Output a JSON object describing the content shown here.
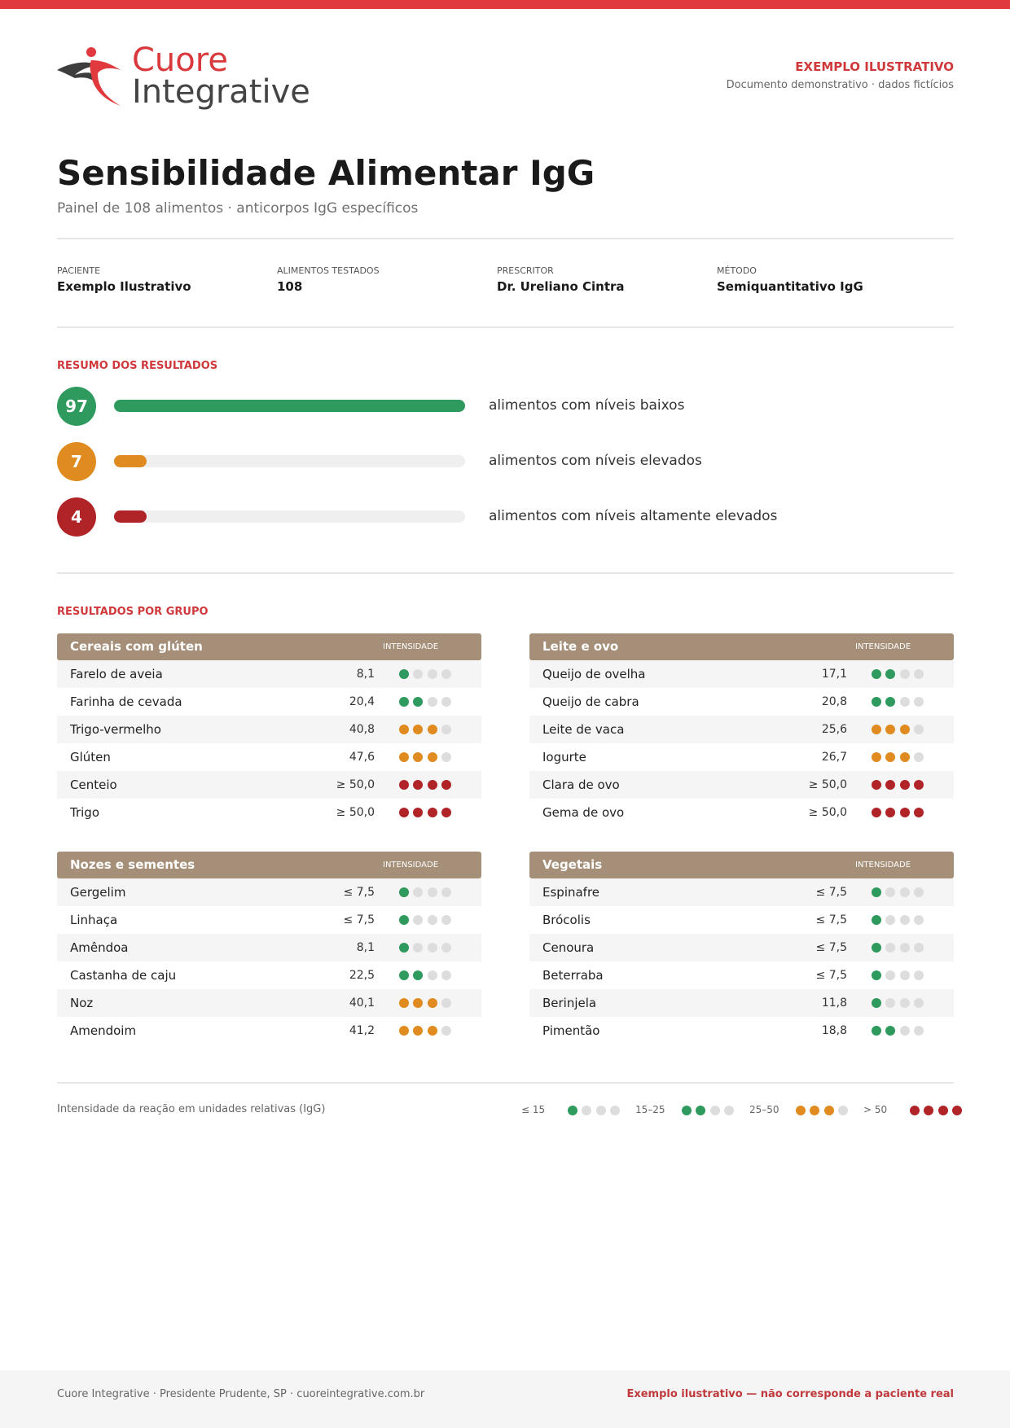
{
  "header": {
    "logo_top": "Cuore",
    "logo_bottom": "Integrative",
    "badge": "EXEMPLO ILUSTRATIVO",
    "badge_note": "Documento demonstrativo · dados fictícios"
  },
  "title": "Sensibilidade Alimentar IgG",
  "subtitle": "Painel de 108 alimentos · anticorpos IgG específicos",
  "info": [
    {
      "label": "PACIENTE",
      "value": "Exemplo Ilustrativo"
    },
    {
      "label": "ALIMENTOS TESTADOS",
      "value": "108"
    },
    {
      "label": "PRESCRITOR",
      "value": "Dr. Ureliano Cintra"
    },
    {
      "label": "MÉTODO",
      "value": "Semiquantitativo IgG"
    }
  ],
  "summary": {
    "title": "RESUMO DOS RESULTADOS",
    "items": [
      {
        "count": 97,
        "label": "alimentos com níveis baixos",
        "color": "#2e9a5e"
      },
      {
        "count": 7,
        "label": "alimentos com níveis elevados",
        "color": "#e08b1f"
      },
      {
        "count": 4,
        "label": "alimentos com níveis altamente elevados",
        "color": "#b02428"
      }
    ]
  },
  "groups_title": "RESULTADOS POR GRUPO",
  "intensity_label": "INTENSIDADE",
  "level_colors": [
    "#2e9a5e",
    "#2e9a5e",
    "#e08b1f",
    "#b02428"
  ],
  "groups": [
    {
      "name": "Cereais com glúten",
      "rows": [
        {
          "food": "Farelo de aveia",
          "value": "8,1",
          "level": 1
        },
        {
          "food": "Farinha de cevada",
          "value": "20,4",
          "level": 2
        },
        {
          "food": "Trigo-vermelho",
          "value": "40,8",
          "level": 3
        },
        {
          "food": "Glúten",
          "value": "47,6",
          "level": 3
        },
        {
          "food": "Centeio",
          "value": "≥ 50,0",
          "level": 4
        },
        {
          "food": "Trigo",
          "value": "≥ 50,0",
          "level": 4
        }
      ]
    },
    {
      "name": "Leite e ovo",
      "rows": [
        {
          "food": "Queijo de ovelha",
          "value": "17,1",
          "level": 2
        },
        {
          "food": "Queijo de cabra",
          "value": "20,8",
          "level": 2
        },
        {
          "food": "Leite de vaca",
          "value": "25,6",
          "level": 3
        },
        {
          "food": "Iogurte",
          "value": "26,7",
          "level": 3
        },
        {
          "food": "Clara de ovo",
          "value": "≥ 50,0",
          "level": 4
        },
        {
          "food": "Gema de ovo",
          "value": "≥ 50,0",
          "level": 4
        }
      ]
    },
    {
      "name": "Nozes e sementes",
      "rows": [
        {
          "food": "Gergelim",
          "value": "≤ 7,5",
          "level": 1
        },
        {
          "food": "Linhaça",
          "value": "≤ 7,5",
          "level": 1
        },
        {
          "food": "Amêndoa",
          "value": "8,1",
          "level": 1
        },
        {
          "food": "Castanha de caju",
          "value": "22,5",
          "level": 2
        },
        {
          "food": "Noz",
          "value": "40,1",
          "level": 3
        },
        {
          "food": "Amendoim",
          "value": "41,2",
          "level": 3
        }
      ]
    },
    {
      "name": "Vegetais",
      "rows": [
        {
          "food": "Espinafre",
          "value": "≤ 7,5",
          "level": 1
        },
        {
          "food": "Brócolis",
          "value": "≤ 7,5",
          "level": 1
        },
        {
          "food": "Cenoura",
          "value": "≤ 7,5",
          "level": 1
        },
        {
          "food": "Beterraba",
          "value": "≤ 7,5",
          "level": 1
        },
        {
          "food": "Berinjela",
          "value": "11,8",
          "level": 1
        },
        {
          "food": "Pimentão",
          "value": "18,8",
          "level": 2
        }
      ]
    }
  ],
  "legend": {
    "caption": "Intensidade da reação em unidades relativas (IgG)",
    "items": [
      {
        "range": "≤ 15",
        "level": 1
      },
      {
        "range": "15–25",
        "level": 2
      },
      {
        "range": "25–50",
        "level": 3
      },
      {
        "range": "> 50",
        "level": 4
      }
    ]
  },
  "footer": {
    "left": "Cuore Integrative · Presidente Prudente, SP · cuoreintegrative.com.br",
    "right": "Exemplo ilustrativo — não corresponde a paciente real"
  }
}
